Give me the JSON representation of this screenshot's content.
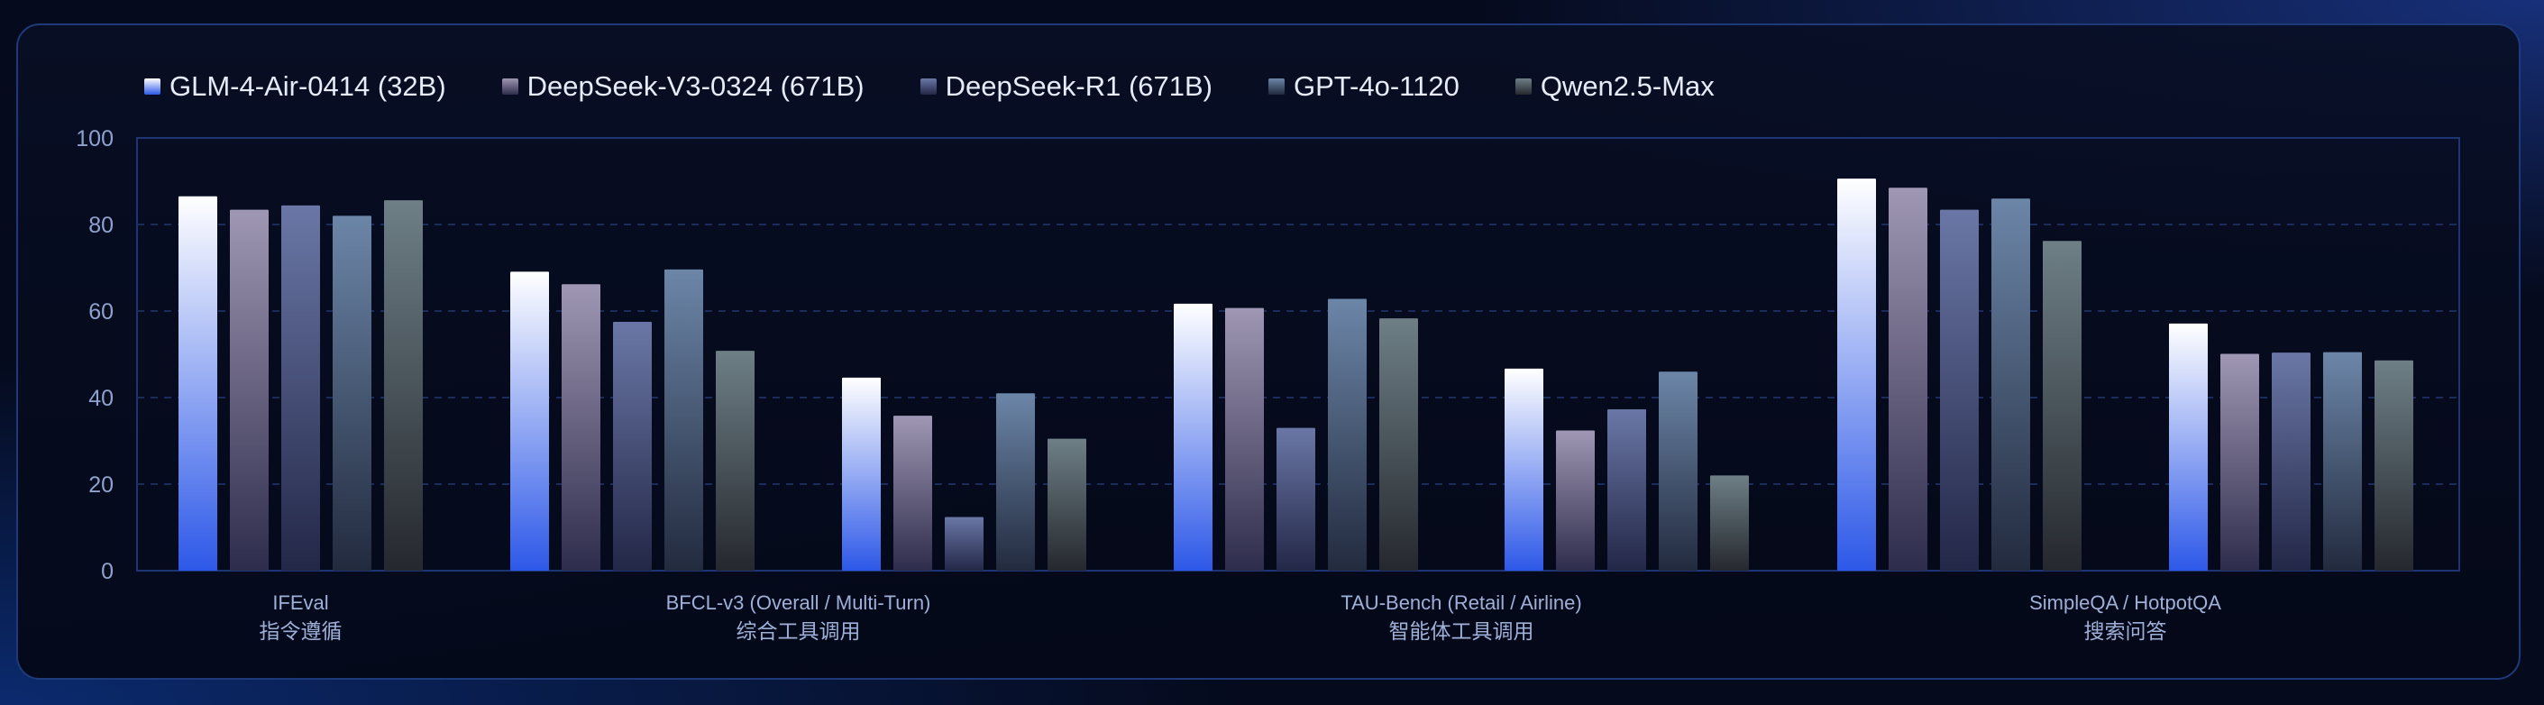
{
  "colors": {
    "series_top": [
      "#ffffff",
      "#9f97b3",
      "#6a77a6",
      "#6c86a8",
      "#6e7f86"
    ],
    "series_bottom": [
      "#2d58e8",
      "#2e2c4c",
      "#232747",
      "#222a3e",
      "#25282e"
    ],
    "axis": "#1e3575",
    "grid": "#1a2b5c",
    "tick_text": "#8fa2cd",
    "category_text": "#9fb0d8"
  },
  "chart_data": {
    "type": "bar",
    "ylim": [
      0,
      100
    ],
    "yticks": [
      0,
      20,
      40,
      60,
      80,
      100
    ],
    "grid": true,
    "legend_position": "top-left",
    "series": [
      {
        "name": "GLM-4-Air-0414 (32B)",
        "values": [
          86.5,
          69.1,
          44.6,
          61.7,
          46.7,
          90.6,
          57.1
        ]
      },
      {
        "name": "DeepSeek-V3-0324 (671B)",
        "values": [
          83.4,
          66.2,
          35.8,
          60.7,
          32.4,
          88.5,
          50.1
        ]
      },
      {
        "name": "DeepSeek-R1 (671B)",
        "values": [
          84.4,
          57.5,
          12.4,
          33.0,
          37.3,
          83.4,
          50.4
        ]
      },
      {
        "name": "GPT-4o-1120",
        "values": [
          82.0,
          69.6,
          41.0,
          62.8,
          46.0,
          86.0,
          50.5
        ]
      },
      {
        "name": "Qwen2.5-Max",
        "values": [
          85.6,
          50.8,
          30.5,
          58.3,
          22.0,
          76.2,
          48.6
        ]
      }
    ],
    "groups": [
      {
        "label_en": "IFEval",
        "label_zh": "指令遵循",
        "clusters": [
          0
        ]
      },
      {
        "label_en": "BFCL-v3 (Overall / Multi-Turn)",
        "label_zh": "综合工具调用",
        "clusters": [
          1,
          2
        ]
      },
      {
        "label_en": "TAU-Bench (Retail / Airline)",
        "label_zh": "智能体工具调用",
        "clusters": [
          3,
          4
        ]
      },
      {
        "label_en": "SimpleQA / HotpotQA",
        "label_zh": "搜索问答",
        "clusters": [
          5,
          6
        ]
      }
    ]
  }
}
